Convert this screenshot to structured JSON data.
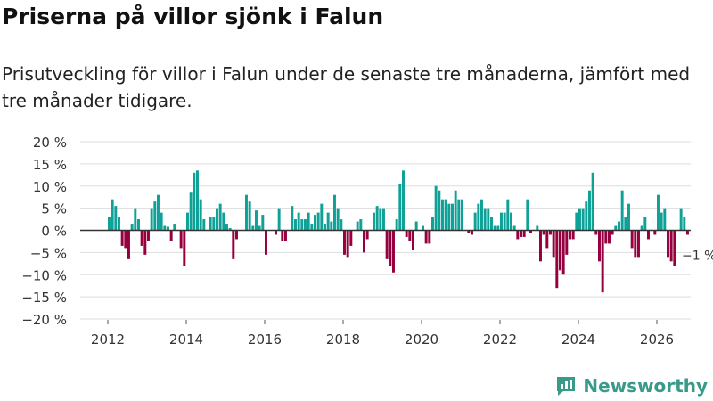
{
  "title": "Priserna på villor sjönk i Falun",
  "subtitle": "Prisutveckling för villor i Falun under de senaste tre månaderna, jämfört med tre månader tidigare.",
  "brand": "Newsworthy",
  "colors": {
    "positive": "#0fa197",
    "negative": "#96003e",
    "grid": "#dddddd",
    "zero": "#333333"
  },
  "chart_data": {
    "type": "bar",
    "title": "Priserna på villor sjönk i Falun",
    "xlabel": "",
    "ylabel": "",
    "ylim": [
      -20,
      20
    ],
    "yticks": [
      20,
      15,
      10,
      5,
      0,
      -5,
      -10,
      -15,
      -20
    ],
    "ytick_labels": [
      "20 %",
      "15 %",
      "10 %",
      "5 %",
      "0 %",
      "−5 %",
      "−10 %",
      "−15 %",
      "−20 %"
    ],
    "xticks": [
      "2012",
      "2014",
      "2016",
      "2018",
      "2020",
      "2022",
      "2024",
      "2026"
    ],
    "start": "2012-01",
    "frequency": "monthly",
    "values": [
      3,
      7,
      5.5,
      3,
      -3.5,
      -4,
      -6.5,
      1.5,
      5,
      2.5,
      -3.5,
      -5.5,
      -2.5,
      5,
      6.5,
      8,
      4,
      1,
      0.8,
      -2.5,
      1.5,
      0,
      -4,
      -8,
      4,
      8.5,
      13,
      13.5,
      7,
      2.5,
      0,
      3,
      3,
      5,
      6,
      4,
      1.5,
      0.5,
      -6.5,
      -2,
      0,
      0,
      8,
      6.5,
      1,
      4.5,
      1,
      3.5,
      -5.5,
      0,
      0,
      -1,
      5,
      -2.5,
      -2.5,
      0,
      5.5,
      2.5,
      4,
      2.5,
      2.5,
      4,
      1.5,
      3.5,
      4,
      6,
      1.5,
      4,
      2,
      8,
      5,
      2.5,
      -5.5,
      -6,
      -3.5,
      0,
      2,
      2.5,
      -5,
      -2,
      0,
      4,
      5.5,
      5,
      5,
      -6.5,
      -8,
      -9.5,
      2.5,
      10.5,
      13.5,
      -1.5,
      -2.5,
      -4.5,
      2,
      0,
      1,
      -3,
      -3,
      3,
      10,
      9,
      7,
      7,
      6,
      6,
      9,
      7,
      7,
      0,
      -0.5,
      -1,
      4,
      6,
      7,
      5,
      5,
      3,
      1,
      1,
      4,
      4,
      7,
      4,
      1,
      -2,
      -1.5,
      -1.5,
      7,
      -0.5,
      0,
      1,
      -7,
      -1,
      -4,
      -1,
      -6,
      -13,
      -9,
      -10,
      -5.5,
      -2,
      -2,
      4,
      5,
      5,
      6.5,
      9,
      13,
      -1,
      -7,
      -14,
      -3,
      -3,
      -1,
      1,
      2,
      9,
      3,
      6,
      -4,
      -6,
      -6,
      1,
      3,
      -2,
      0,
      -1,
      8,
      4,
      5,
      -6,
      -7,
      -8,
      0,
      5,
      3,
      -1
    ],
    "last_label": "−1 %"
  }
}
